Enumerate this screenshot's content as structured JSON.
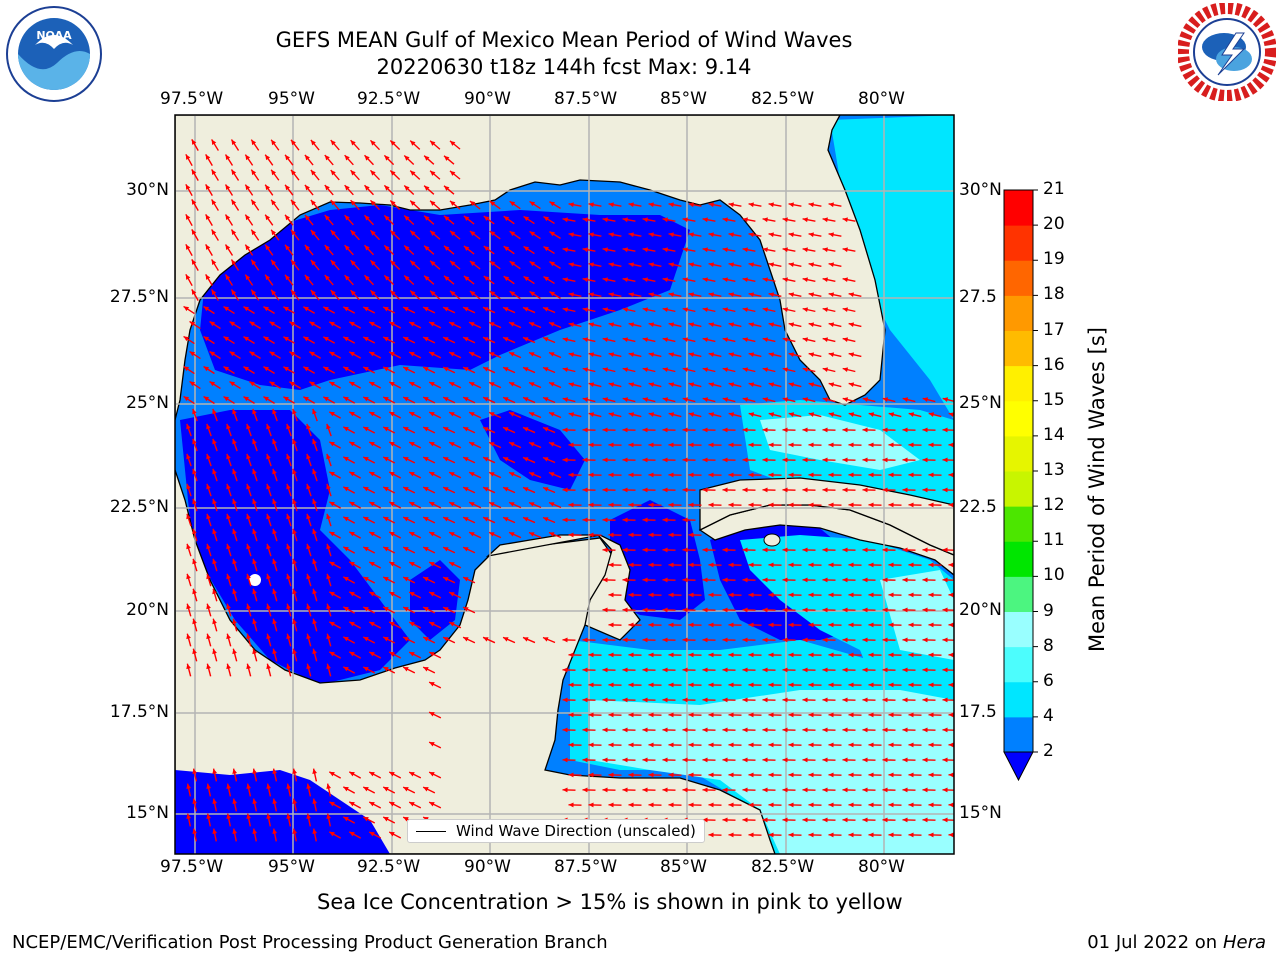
{
  "title": {
    "line1": "GEFS MEAN Gulf of Mexico Mean Period of Wind Waves",
    "line2": "20220630 t18z 144h fcst   Max: 9.14"
  },
  "logos": {
    "left": {
      "name": "noaa-logo",
      "text": "NOAA",
      "ring_text": "NATIONAL OCEANIC AND ATMOSPHERIC ADMINISTRATION · U.S. DEPARTMENT OF COMMERCE"
    },
    "right": {
      "name": "nws-logo",
      "ring_text": "NATIONAL WEATHER SERVICE"
    }
  },
  "map": {
    "lon_ticks": [
      "97.5°W",
      "95°W",
      "92.5°W",
      "90°W",
      "87.5°W",
      "85°W",
      "82.5°W",
      "80°W"
    ],
    "lat_ticks_left": [
      "30°N",
      "27.5°N",
      "25°N",
      "22.5°N",
      "20°N",
      "17.5°N",
      "15°N"
    ],
    "lat_ticks_right": [
      "30°N",
      "27.5",
      "25°N",
      "22.5",
      "20°N",
      "17.5",
      "15°N"
    ],
    "extent": {
      "lon": [
        -98,
        -78.2
      ],
      "lat": [
        14,
        31.8
      ]
    },
    "colors": {
      "land": "#efeedd",
      "grid": "#b4b4b4",
      "arrow": "#ff0000",
      "coast": "#000000"
    },
    "legend_label": "Wind Wave Direction (unscaled)"
  },
  "colorbar": {
    "label": "Mean Period of Wind Waves [s]",
    "ticks": [
      "2",
      "4",
      "6",
      "8",
      "9",
      "10",
      "11",
      "12",
      "13",
      "14",
      "15",
      "16",
      "17",
      "18",
      "19",
      "20",
      "21"
    ],
    "levels": [
      {
        "from": 2,
        "to": 4,
        "color": "#0080ff"
      },
      {
        "from": 4,
        "to": 6,
        "color": "#00e6ff"
      },
      {
        "from": 6,
        "to": 8,
        "color": "#4cfdfd"
      },
      {
        "from": 8,
        "to": 9,
        "color": "#99ffff"
      },
      {
        "from": 9,
        "to": 10,
        "color": "#4cf580"
      },
      {
        "from": 10,
        "to": 11,
        "color": "#00e600"
      },
      {
        "from": 11,
        "to": 12,
        "color": "#4ce600"
      },
      {
        "from": 12,
        "to": 13,
        "color": "#c8f500"
      },
      {
        "from": 13,
        "to": 14,
        "color": "#e6f500"
      },
      {
        "from": 14,
        "to": 15,
        "color": "#ffff00"
      },
      {
        "from": 15,
        "to": 16,
        "color": "#fff000"
      },
      {
        "from": 16,
        "to": 17,
        "color": "#ffbb00"
      },
      {
        "from": 17,
        "to": 18,
        "color": "#ff9900"
      },
      {
        "from": 18,
        "to": 19,
        "color": "#ff6600"
      },
      {
        "from": 19,
        "to": 20,
        "color": "#ff3300"
      },
      {
        "from": 20,
        "to": 21,
        "color": "#ff0000"
      }
    ],
    "under_color": "#0000ff"
  },
  "notes": {
    "sea_ice": "Sea Ice Concentration > 15% is shown in pink to yellow"
  },
  "footer": {
    "left": "NCEP/EMC/Verification Post Processing Product Generation Branch",
    "date": "01 Jul 2022 on ",
    "machine": "Hera"
  }
}
